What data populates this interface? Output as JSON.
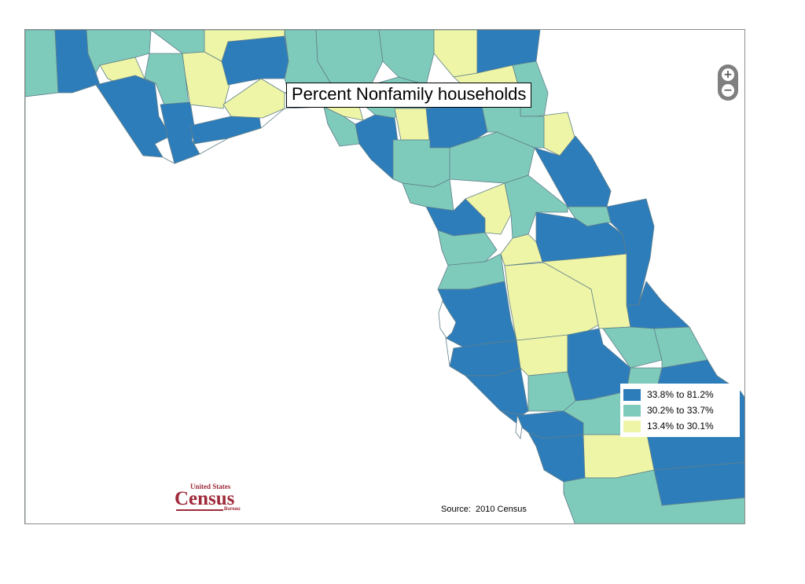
{
  "map": {
    "title": "Percent Nonfamily households",
    "colors": {
      "high": "#2d7dbb",
      "mid": "#7fcbbb",
      "low": "#eef5a6",
      "water": "#ffffff",
      "border": "#5f7f8a"
    },
    "legend": [
      {
        "label": "33.8% to 81.2%",
        "color": "#2d7dbb"
      },
      {
        "label": "30.2% to 33.7%",
        "color": "#7fcbbb"
      },
      {
        "label": "13.4% to 30.1%",
        "color": "#eef5a6"
      }
    ],
    "zoom": {
      "in_label": "+",
      "out_label": "−"
    },
    "source": "Source:  2010 Census",
    "logo": {
      "top": "United States",
      "main": "Census",
      "sub": "Bureau"
    }
  }
}
